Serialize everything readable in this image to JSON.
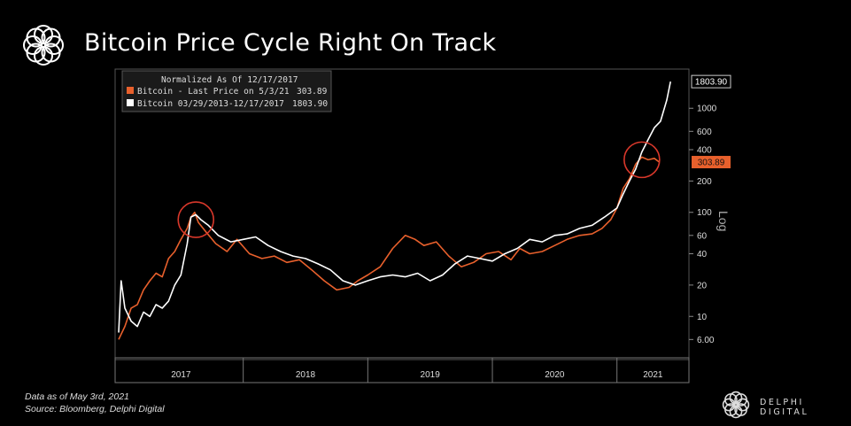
{
  "header": {
    "title": "Bitcoin Price Cycle Right On Track"
  },
  "footer": {
    "note_line1": "Data as of May 3rd, 2021",
    "note_line2": "Source: Bloomberg, Delphi Digital",
    "brand": "DELPHI DIGITAL"
  },
  "colors": {
    "background": "#000000",
    "orange_series": "#e8602c",
    "white_series": "#ffffff",
    "circle": "#d9382b"
  },
  "chart_data": {
    "type": "line",
    "title": "Bitcoin Price Cycle Right On Track",
    "legend": {
      "header": "Normalized As Of 12/17/2017",
      "placement": "top-left",
      "entries": [
        {
          "label": "Bitcoin - Last Price on 5/3/21",
          "value": "303.89",
          "color": "#e8602c"
        },
        {
          "label": "Bitcoin 03/29/2013-12/17/2017",
          "value": "1803.90",
          "color": "#ffffff"
        }
      ]
    },
    "y_scale": "log",
    "y_scale_label": "Log",
    "ylim": [
      4.5,
      2200
    ],
    "y_ticks": [
      6,
      10,
      20,
      40,
      60,
      100,
      200,
      400,
      600,
      1000
    ],
    "y_tick_labels": [
      "6.00",
      "10",
      "20",
      "40",
      "60",
      "100",
      "200",
      "400",
      "600",
      "1000"
    ],
    "x_range": [
      2017.0,
      2021.45
    ],
    "x_ticks": [
      2017,
      2018,
      2019,
      2020,
      2021
    ],
    "x_tick_labels": [
      "2017",
      "2018",
      "2019",
      "2020",
      "2021"
    ],
    "end_labels": [
      {
        "value": 1803.9,
        "text": "1803.90",
        "series": "white"
      },
      {
        "value": 303.89,
        "text": "303.89",
        "series": "orange"
      }
    ],
    "annotations": [
      {
        "type": "circle",
        "x": 2017.62,
        "y": 85
      },
      {
        "type": "circle",
        "x": 2021.2,
        "y": 320
      }
    ],
    "grid": false,
    "series": [
      {
        "name": "Bitcoin - Last Price on 5/3/21",
        "color": "#e8602c",
        "x": [
          2017.0,
          2017.05,
          2017.1,
          2017.15,
          2017.2,
          2017.25,
          2017.3,
          2017.35,
          2017.4,
          2017.45,
          2017.5,
          2017.55,
          2017.58,
          2017.61,
          2017.64,
          2017.7,
          2017.78,
          2017.87,
          2017.95,
          2018.05,
          2018.15,
          2018.25,
          2018.35,
          2018.45,
          2018.55,
          2018.65,
          2018.75,
          2018.85,
          2018.92,
          2019.0,
          2019.1,
          2019.2,
          2019.3,
          2019.38,
          2019.45,
          2019.55,
          2019.65,
          2019.75,
          2019.85,
          2019.95,
          2020.05,
          2020.15,
          2020.22,
          2020.3,
          2020.4,
          2020.5,
          2020.6,
          2020.7,
          2020.8,
          2020.88,
          2020.95,
          2021.0,
          2021.05,
          2021.1,
          2021.15,
          2021.2,
          2021.25,
          2021.3,
          2021.34
        ],
        "y": [
          6,
          8,
          12,
          13,
          18,
          22,
          26,
          24,
          36,
          42,
          55,
          70,
          90,
          100,
          80,
          65,
          50,
          42,
          55,
          40,
          36,
          38,
          33,
          35,
          28,
          22,
          18,
          19,
          22,
          25,
          30,
          45,
          60,
          55,
          48,
          52,
          38,
          30,
          33,
          40,
          42,
          35,
          45,
          40,
          42,
          48,
          55,
          60,
          62,
          70,
          85,
          110,
          170,
          210,
          290,
          340,
          320,
          330,
          304
        ]
      },
      {
        "name": "Bitcoin 03/29/2013-12/17/2017",
        "color": "#ffffff",
        "x": [
          2017.0,
          2017.02,
          2017.05,
          2017.1,
          2017.15,
          2017.2,
          2017.25,
          2017.3,
          2017.35,
          2017.4,
          2017.45,
          2017.5,
          2017.55,
          2017.58,
          2017.62,
          2017.66,
          2017.72,
          2017.8,
          2017.9,
          2018.0,
          2018.1,
          2018.2,
          2018.3,
          2018.4,
          2018.5,
          2018.6,
          2018.7,
          2018.8,
          2018.9,
          2019.0,
          2019.1,
          2019.2,
          2019.3,
          2019.4,
          2019.5,
          2019.6,
          2019.7,
          2019.8,
          2019.9,
          2020.0,
          2020.1,
          2020.2,
          2020.3,
          2020.4,
          2020.5,
          2020.6,
          2020.7,
          2020.8,
          2020.9,
          2021.0,
          2021.05,
          2021.1,
          2021.15,
          2021.2,
          2021.25,
          2021.3,
          2021.35,
          2021.4,
          2021.43
        ],
        "y": [
          7,
          22,
          12,
          9,
          8,
          11,
          10,
          13,
          12,
          14,
          20,
          25,
          50,
          90,
          95,
          85,
          75,
          60,
          52,
          55,
          58,
          48,
          42,
          38,
          36,
          32,
          28,
          22,
          20,
          22,
          24,
          25,
          24,
          26,
          22,
          25,
          32,
          38,
          36,
          34,
          40,
          45,
          55,
          52,
          60,
          62,
          70,
          75,
          90,
          110,
          150,
          200,
          260,
          380,
          500,
          650,
          750,
          1200,
          1803.9
        ]
      }
    ]
  }
}
